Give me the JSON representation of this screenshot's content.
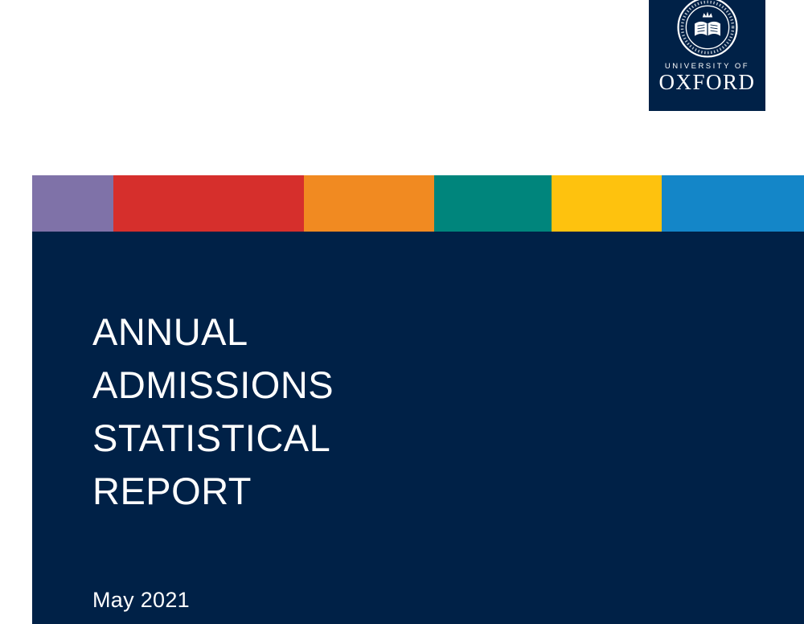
{
  "logo": {
    "background": "#002147",
    "org_line1": "UNIVERSITY OF",
    "org_line2": "OXFORD"
  },
  "banner": {
    "stripes": [
      {
        "name": "purple",
        "color": "#7F72A8",
        "width_pct": 10.5
      },
      {
        "name": "red",
        "color": "#D62F2C",
        "width_pct": 24.7
      },
      {
        "name": "orange",
        "color": "#F18A21",
        "width_pct": 16.9
      },
      {
        "name": "teal",
        "color": "#00857C",
        "width_pct": 15.2
      },
      {
        "name": "yellow",
        "color": "#FEC20E",
        "width_pct": 14.3
      },
      {
        "name": "blue",
        "color": "#1486C8",
        "width_pct": 18.4
      }
    ]
  },
  "cover": {
    "background": "#002147",
    "text_color": "#ffffff",
    "title": "ANNUAL\nADMISSIONS\nSTATISTICAL\nREPORT",
    "date": "May 2021"
  }
}
